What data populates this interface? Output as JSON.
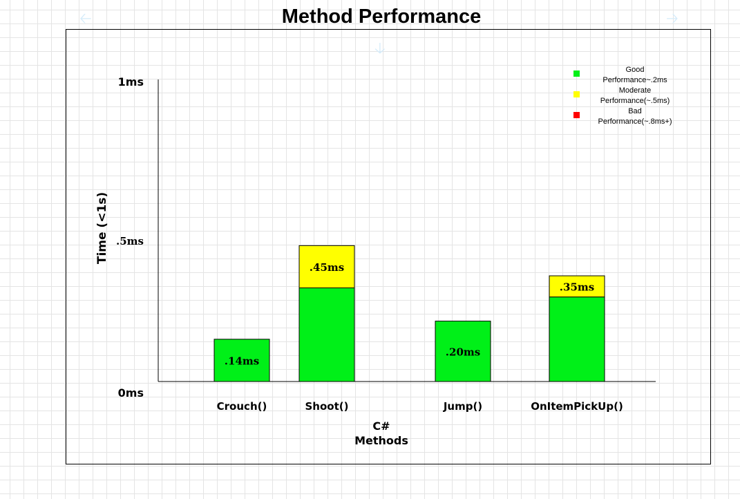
{
  "chart_data": {
    "type": "bar",
    "title": "Method Performance",
    "ylabel": "Time (<1s)",
    "xlabel_lines": [
      "C#",
      "Methods"
    ],
    "ylim": [
      0,
      1
    ],
    "yticks": [
      {
        "value": 1,
        "label": "1ms"
      },
      {
        "value": 0.5,
        "label": ".5ms"
      },
      {
        "value": 0,
        "label": "0ms"
      }
    ],
    "categories": [
      "Crouch()",
      "Shoot()",
      "Jump()",
      "OnItemPickUp()"
    ],
    "bars": [
      {
        "category": "Crouch()",
        "value": 0.14,
        "label": ".14ms",
        "segments": [
          {
            "category_name": "good",
            "value": 0.14
          }
        ]
      },
      {
        "category": "Shoot()",
        "value": 0.45,
        "label": ".45ms",
        "segments": [
          {
            "category_name": "good",
            "value": 0.31
          },
          {
            "category_name": "moderate",
            "value": 0.14
          }
        ]
      },
      {
        "category": "Jump()",
        "value": 0.2,
        "label": ".20ms",
        "segments": [
          {
            "category_name": "good",
            "value": 0.2
          }
        ]
      },
      {
        "category": "OnItemPickUp()",
        "value": 0.35,
        "label": ".35ms",
        "segments": [
          {
            "category_name": "good",
            "value": 0.28
          },
          {
            "category_name": "moderate",
            "value": 0.07
          }
        ]
      }
    ],
    "legend": {
      "position": "top-right",
      "entries": [
        {
          "key": "good",
          "lines": [
            "Good",
            "Performance~.2ms"
          ],
          "color": "#00f018"
        },
        {
          "key": "moderate",
          "lines": [
            "Moderate",
            "Performance(~.5ms)"
          ],
          "color": "#ffff00"
        },
        {
          "key": "bad",
          "lines": [
            "Bad",
            "Performance(~.8ms+)"
          ],
          "color": "#ff0000"
        }
      ]
    },
    "colors": {
      "good": "#00f018",
      "moderate": "#ffff00",
      "bad": "#ff0000"
    },
    "grid": false
  },
  "decorations": {
    "left_arrow_icon": "arrow-left-icon",
    "right_arrow_icon": "arrow-right-icon",
    "down_arrow_icon": "arrow-down-icon"
  }
}
